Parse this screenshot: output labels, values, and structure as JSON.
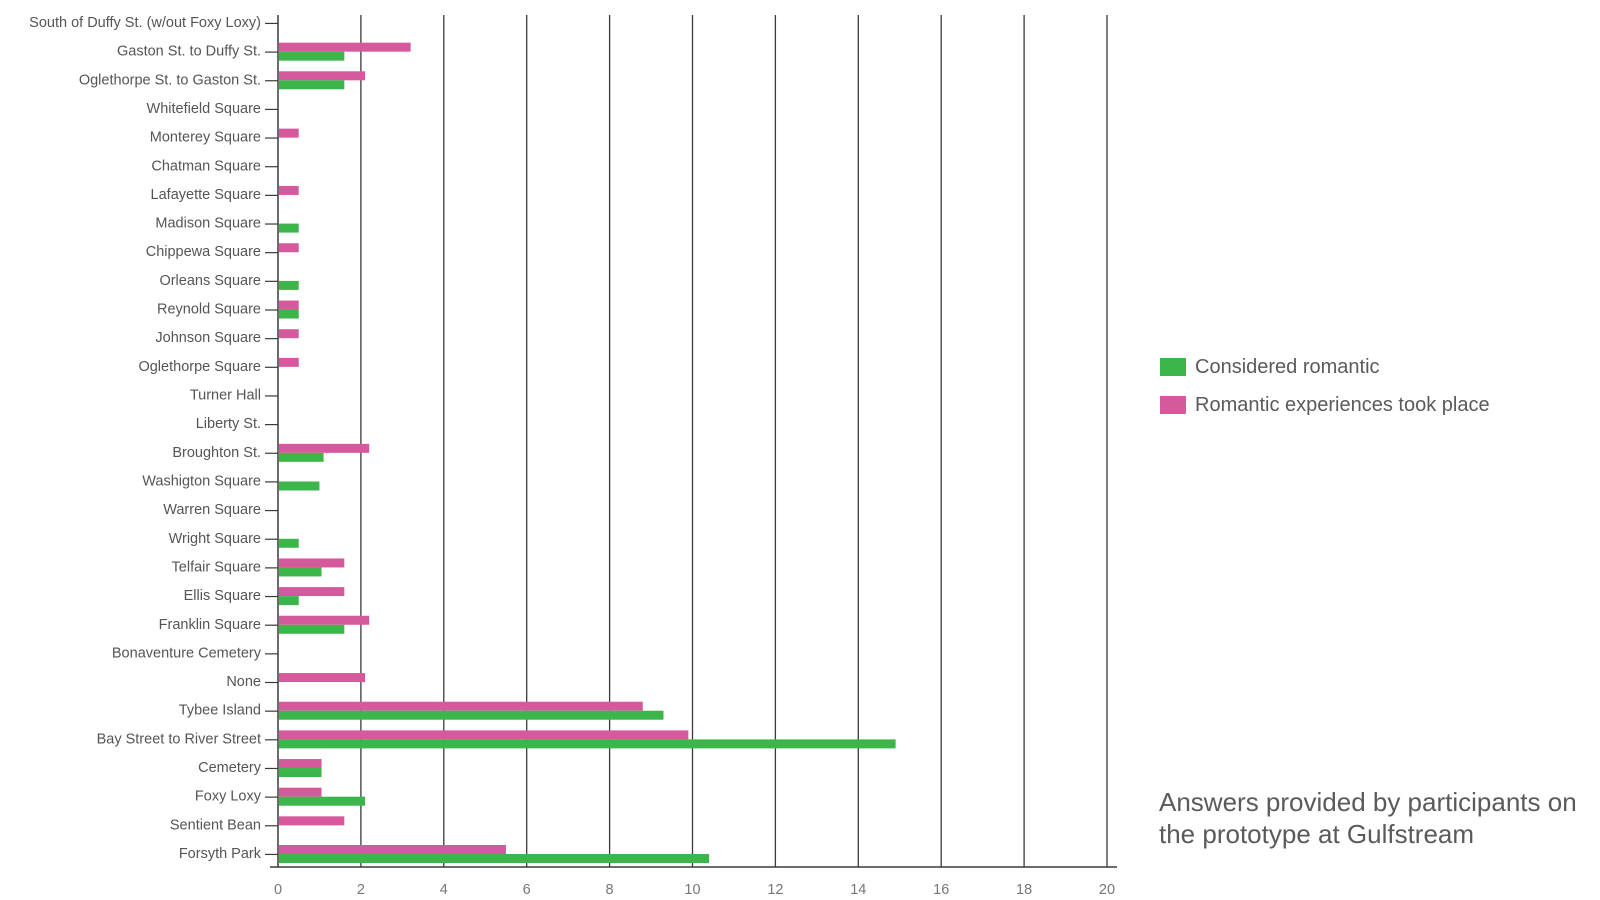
{
  "chart_data": {
    "type": "bar",
    "orientation": "horizontal",
    "categories": [
      "South of Duffy St. (w/out Foxy Loxy)",
      "Gaston St. to Duffy St.",
      "Oglethorpe St. to Gaston St.",
      "Whitefield Square",
      "Monterey Square",
      "Chatman Square",
      "Lafayette Square",
      "Madison Square",
      "Chippewa Square",
      "Orleans Square",
      "Reynold Square",
      "Johnson Square",
      "Oglethorpe Square",
      "Turner Hall",
      "Liberty St.",
      "Broughton St.",
      "Washigton Square",
      "Warren Square",
      "Wright Square",
      "Telfair Square",
      "Ellis Square",
      "Franklin Square",
      "Bonaventure Cemetery",
      "None",
      "Tybee Island",
      "Bay Street to River Street",
      "Cemetery",
      "Foxy Loxy",
      "Sentient Bean",
      "Forsyth Park"
    ],
    "series": [
      {
        "name": "Romantic experiences took place",
        "color": "#d6589d",
        "values": [
          0,
          3.2,
          2.1,
          0,
          0.5,
          0,
          0.5,
          0,
          0.5,
          0,
          0.5,
          0.5,
          0.5,
          0,
          0,
          2.2,
          0,
          0,
          0,
          1.6,
          1.6,
          2.2,
          0,
          2.1,
          8.8,
          9.9,
          1.05,
          1.05,
          1.6,
          5.5
        ]
      },
      {
        "name": "Considered romantic",
        "color": "#3cb54a",
        "values": [
          0,
          1.6,
          1.6,
          0,
          0,
          0,
          0,
          0.5,
          0,
          0.5,
          0.5,
          0,
          0,
          0,
          0,
          1.1,
          1.0,
          0,
          0.5,
          1.05,
          0.5,
          1.6,
          0,
          0,
          9.3,
          14.9,
          1.05,
          2.1,
          0,
          10.4
        ]
      }
    ],
    "xlim": [
      0,
      20
    ],
    "xticks": [
      "0",
      "2",
      "4",
      "6",
      "8",
      "10",
      "12",
      "14",
      "16",
      "18",
      "20"
    ],
    "grid": "vertical",
    "legend_position": "right",
    "xlabel": "",
    "ylabel": ""
  },
  "legend": [
    {
      "label": "Considered romantic",
      "color": "#3cb54a"
    },
    {
      "label": "Romantic experiences took place",
      "color": "#d6589d"
    }
  ],
  "caption": "Answers provided by participants on the prototype at Gulfstream"
}
